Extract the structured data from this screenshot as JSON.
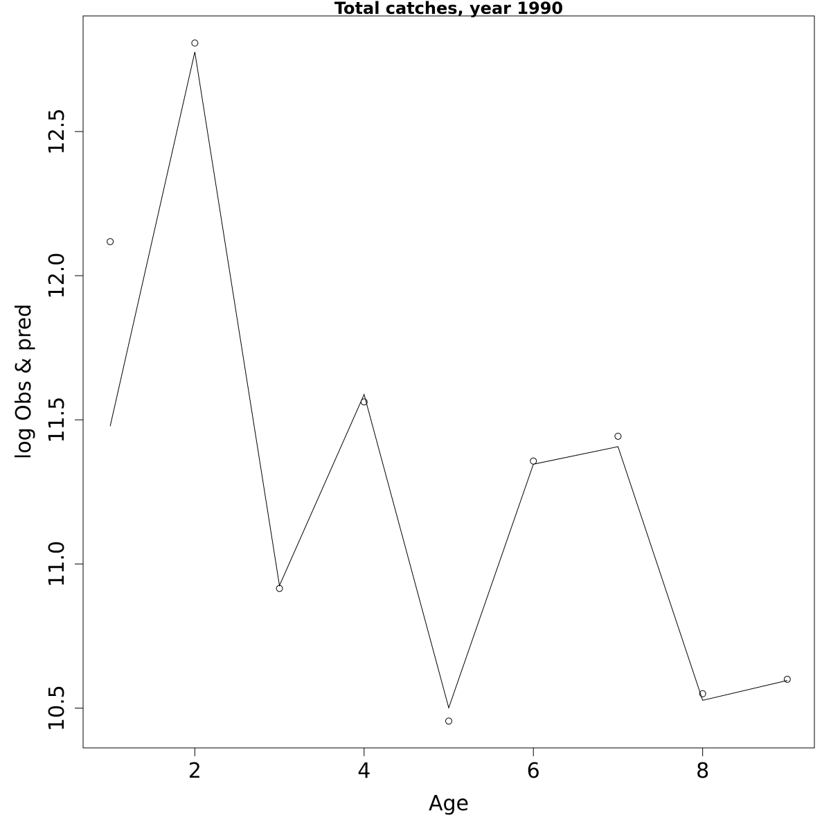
{
  "chart_data": {
    "type": "line",
    "title": "Total catches, year 1990",
    "xlabel": "Age",
    "ylabel": "log Obs & pred",
    "xlim": [
      0.68,
      9.32
    ],
    "ylim": [
      10.362,
      12.901
    ],
    "x_ticks": [
      2,
      4,
      6,
      8
    ],
    "x_tick_labels": [
      "2",
      "4",
      "6",
      "8"
    ],
    "y_ticks": [
      10.5,
      11.0,
      11.5,
      12.0,
      12.5
    ],
    "y_tick_labels": [
      "10.5",
      "11.0",
      "11.5",
      "12.0",
      "12.5"
    ],
    "grid": false,
    "legend": "none",
    "series": [
      {
        "style": "points",
        "marker": "open-circle",
        "x": [
          1,
          2,
          3,
          4,
          5,
          6,
          7,
          8,
          9
        ],
        "values": [
          12.118,
          12.807,
          10.915,
          11.562,
          10.455,
          11.357,
          11.443,
          10.55,
          10.6
        ]
      },
      {
        "style": "line",
        "x": [
          1,
          2,
          3,
          4,
          5,
          6,
          7,
          8,
          9
        ],
        "values": [
          11.478,
          12.776,
          10.925,
          11.588,
          10.501,
          11.346,
          11.407,
          10.527,
          10.596
        ]
      }
    ],
    "colors": {
      "line": "#000000",
      "points": "#000000",
      "axes": "#000000"
    }
  }
}
